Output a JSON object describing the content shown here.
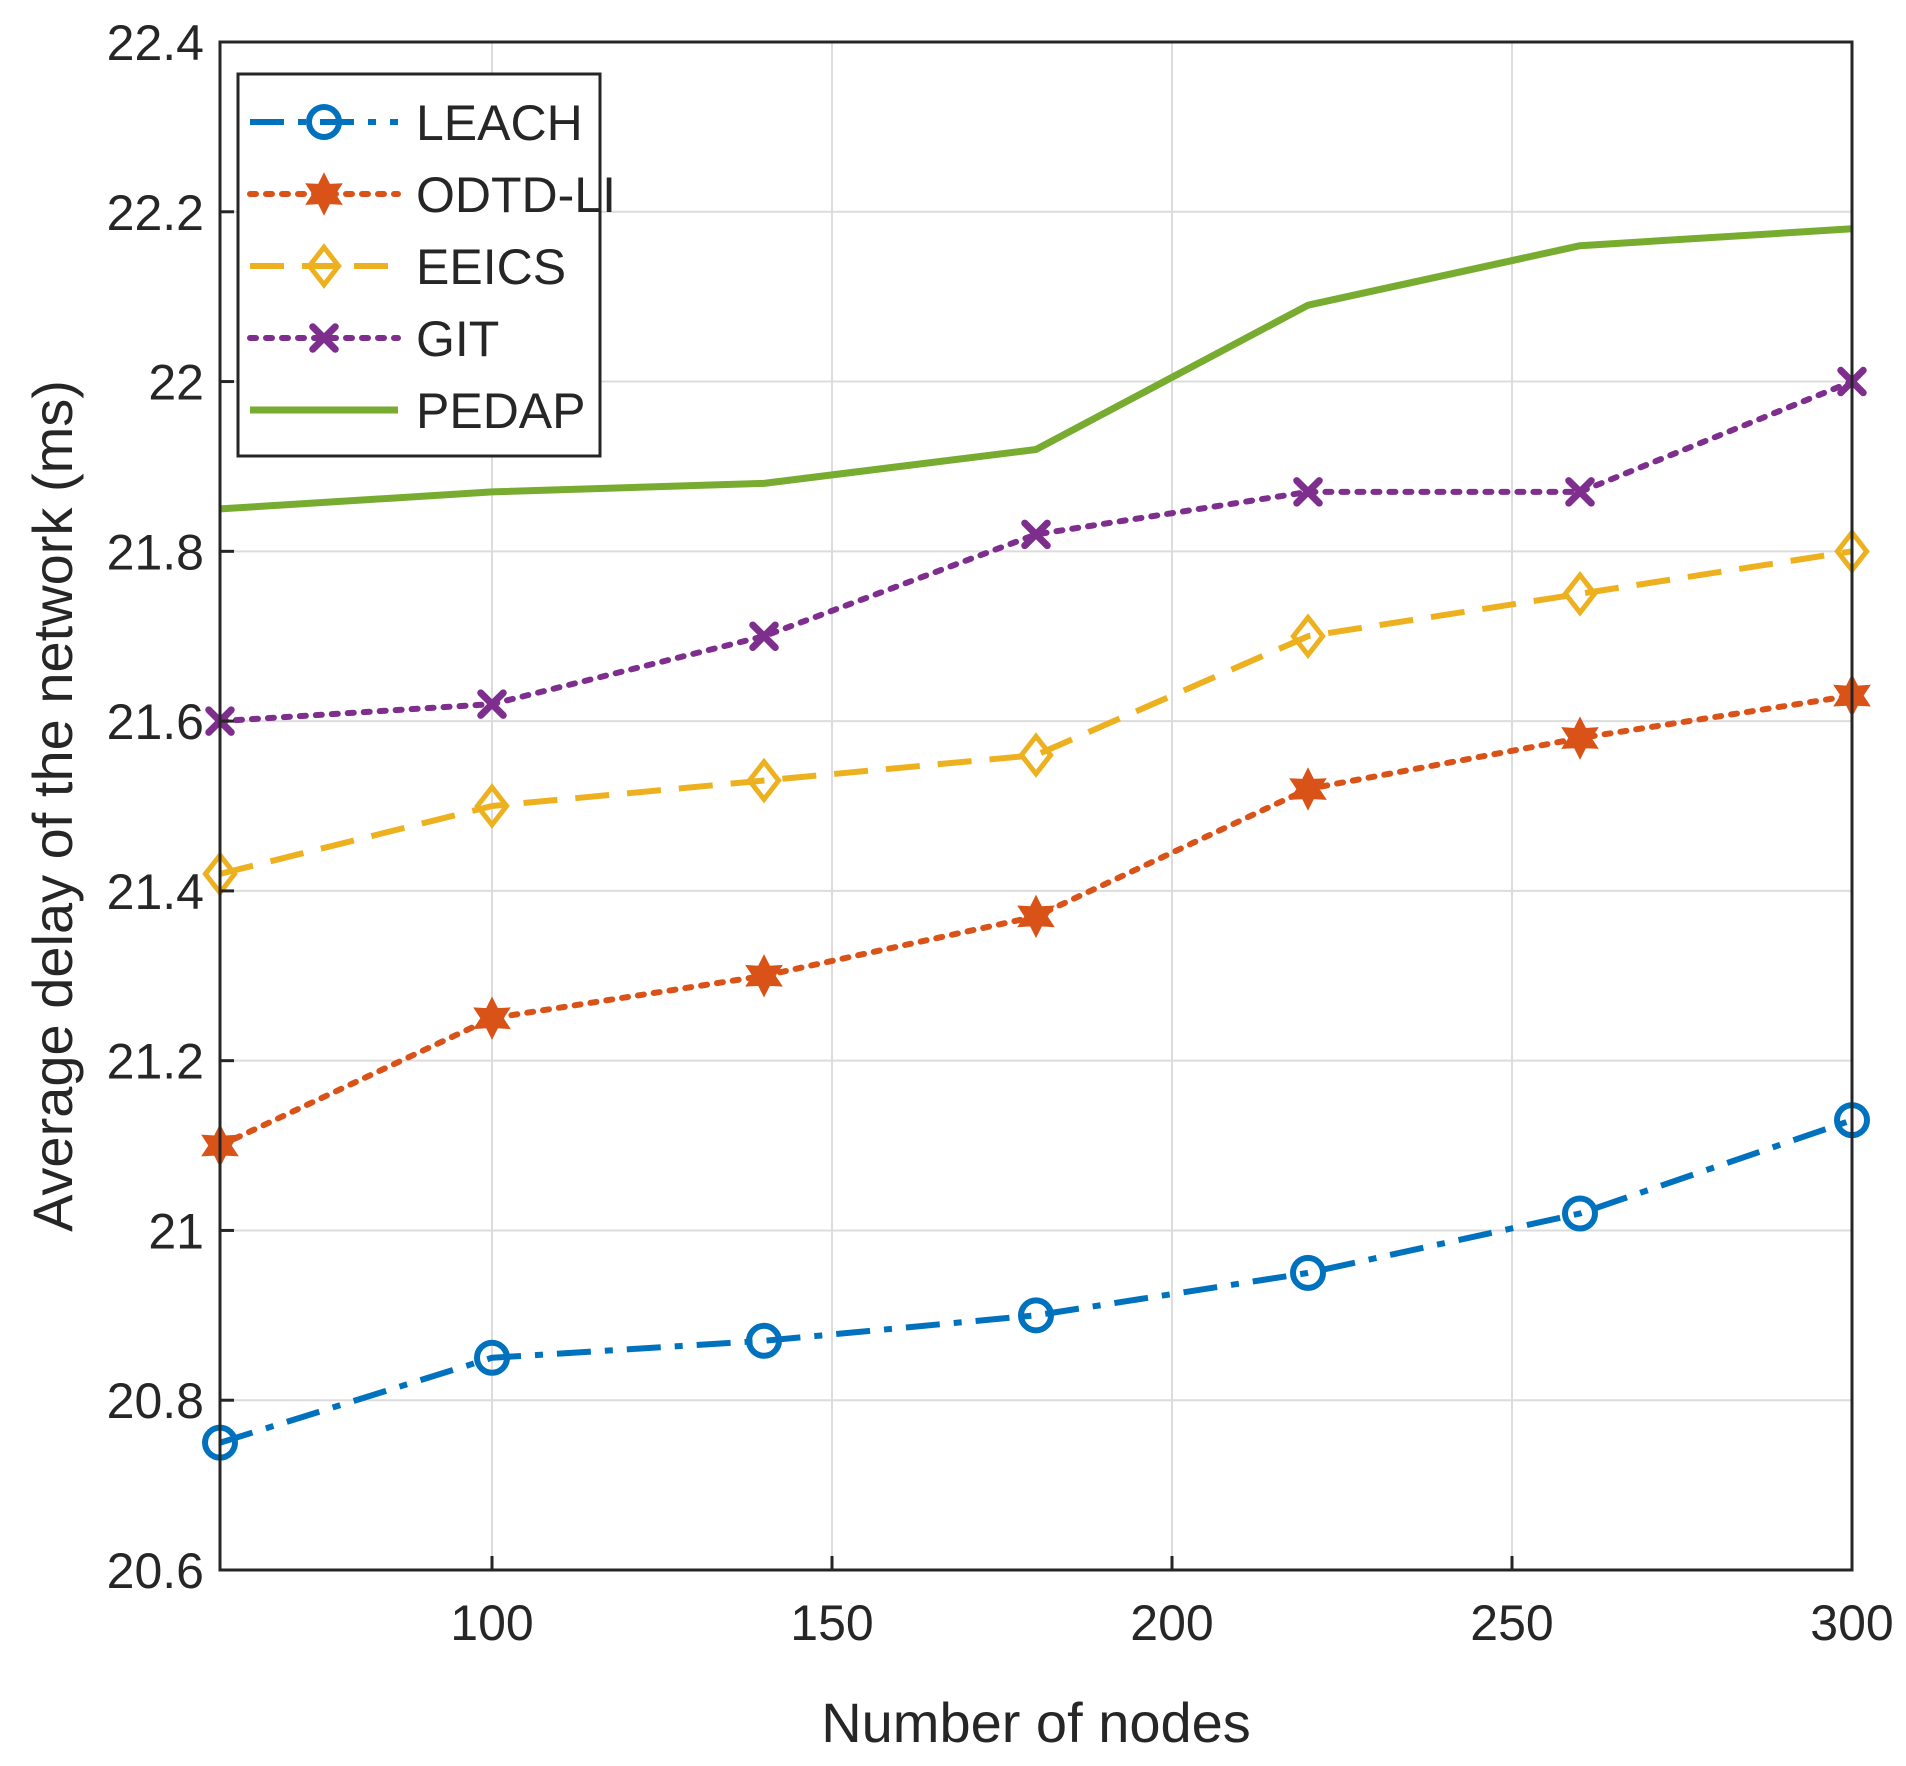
{
  "chart_data": {
    "type": "line",
    "xlabel": "Number of nodes",
    "ylabel": "Average delay of the network (ms)",
    "xlim": [
      60,
      300
    ],
    "ylim": [
      20.6,
      22.4
    ],
    "xticks": [
      100,
      150,
      200,
      250,
      300
    ],
    "xtick_labels": [
      "100",
      "150",
      "200",
      "250",
      "300"
    ],
    "yticks": [
      20.6,
      20.8,
      21,
      21.2,
      21.4,
      21.6,
      21.8,
      22,
      22.2,
      22.4
    ],
    "ytick_labels": [
      "20.6",
      "20.8",
      "21",
      "21.2",
      "21.4",
      "21.6",
      "21.8",
      "22",
      "22.2",
      "22.4"
    ],
    "grid": true,
    "legend_position": "top-left",
    "x": [
      60,
      100,
      140,
      180,
      220,
      260,
      300
    ],
    "series": [
      {
        "name": "LEACH",
        "values": [
          20.75,
          20.85,
          20.87,
          20.9,
          20.95,
          21.02,
          21.13
        ],
        "color": "#0072BD",
        "dash": "dash-dot",
        "marker": "circle"
      },
      {
        "name": "ODTD-LI",
        "values": [
          21.1,
          21.25,
          21.3,
          21.37,
          21.52,
          21.58,
          21.63
        ],
        "color": "#D95319",
        "dash": "dotted",
        "marker": "hexagram"
      },
      {
        "name": "EEICS",
        "values": [
          21.42,
          21.5,
          21.53,
          21.56,
          21.7,
          21.75,
          21.8
        ],
        "color": "#EDB120",
        "dash": "dashed",
        "marker": "diamond"
      },
      {
        "name": "GIT",
        "values": [
          21.6,
          21.62,
          21.7,
          21.82,
          21.87,
          21.87,
          22.0
        ],
        "color": "#7E2F8E",
        "dash": "dotted",
        "marker": "x"
      },
      {
        "name": "PEDAP",
        "values": [
          21.85,
          21.87,
          21.88,
          21.92,
          22.09,
          22.16,
          22.18
        ],
        "color": "#77AC30",
        "dash": "solid",
        "marker": "none"
      }
    ]
  }
}
